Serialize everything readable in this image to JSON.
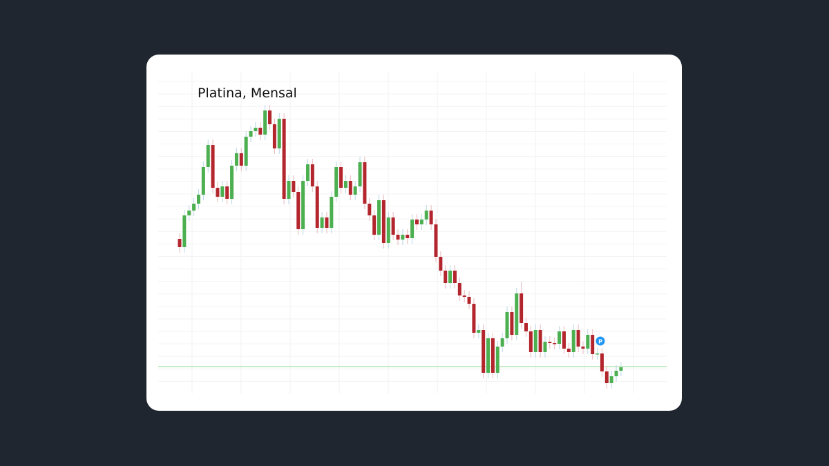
{
  "chart_data": {
    "type": "candlestick",
    "title": "Platina, Mensal",
    "badge": "P",
    "up_color": "#4caf50",
    "down_color": "#b3262d",
    "reference_line": 39,
    "ylim": [
      0,
      460
    ],
    "open": [
      224,
      212,
      258,
      265,
      275,
      288,
      328,
      360,
      298,
      285,
      300,
      282,
      330,
      348,
      330,
      372,
      380,
      385,
      375,
      410,
      390,
      355,
      398,
      282,
      308,
      292,
      238,
      308,
      332,
      300,
      240,
      255,
      240,
      285,
      328,
      298,
      308,
      288,
      300,
      335,
      275,
      258,
      230,
      280,
      218,
      255,
      230,
      223,
      230,
      225,
      252,
      245,
      252,
      265,
      245,
      198,
      178,
      160,
      178,
      160,
      142,
      140,
      130,
      88,
      92,
      30,
      80,
      30,
      68,
      80,
      118,
      85,
      145,
      102,
      90,
      60,
      92,
      60,
      75,
      73,
      72,
      90,
      65,
      60,
      92,
      68,
      65,
      85,
      57,
      58,
      32,
      15,
      25,
      33
    ],
    "high": [
      232,
      266,
      273,
      283,
      296,
      336,
      368,
      368,
      306,
      308,
      308,
      338,
      356,
      356,
      380,
      388,
      393,
      393,
      418,
      418,
      398,
      406,
      406,
      316,
      316,
      300,
      316,
      340,
      340,
      308,
      263,
      263,
      293,
      336,
      336,
      316,
      316,
      308,
      343,
      343,
      283,
      266,
      288,
      288,
      263,
      263,
      238,
      238,
      238,
      260,
      260,
      260,
      273,
      273,
      253,
      206,
      186,
      186,
      186,
      168,
      150,
      148,
      138,
      100,
      100,
      88,
      88,
      76,
      88,
      126,
      126,
      153,
      162,
      110,
      98,
      100,
      100,
      83,
      83,
      81,
      98,
      98,
      73,
      100,
      100,
      76,
      93,
      93,
      66,
      66,
      40,
      33,
      41,
      46
    ],
    "low": [
      204,
      204,
      250,
      257,
      267,
      280,
      320,
      290,
      277,
      277,
      274,
      274,
      322,
      322,
      322,
      364,
      372,
      367,
      367,
      382,
      347,
      347,
      274,
      274,
      284,
      230,
      230,
      300,
      292,
      232,
      232,
      232,
      232,
      277,
      290,
      290,
      280,
      280,
      292,
      267,
      250,
      222,
      222,
      210,
      210,
      222,
      215,
      215,
      217,
      217,
      237,
      237,
      244,
      237,
      190,
      170,
      152,
      152,
      152,
      134,
      132,
      122,
      80,
      80,
      22,
      22,
      22,
      22,
      60,
      72,
      77,
      77,
      94,
      82,
      52,
      52,
      52,
      52,
      65,
      64,
      64,
      57,
      52,
      52,
      60,
      57,
      57,
      49,
      49,
      24,
      7,
      7,
      17,
      25
    ],
    "close": [
      212,
      258,
      265,
      275,
      288,
      328,
      360,
      298,
      285,
      300,
      282,
      330,
      348,
      330,
      372,
      380,
      385,
      375,
      410,
      390,
      355,
      398,
      282,
      308,
      292,
      238,
      308,
      332,
      300,
      240,
      255,
      240,
      285,
      328,
      298,
      308,
      288,
      300,
      335,
      275,
      258,
      230,
      280,
      218,
      255,
      230,
      223,
      230,
      225,
      252,
      245,
      252,
      265,
      245,
      198,
      178,
      160,
      178,
      160,
      142,
      140,
      130,
      88,
      92,
      30,
      80,
      30,
      68,
      80,
      118,
      85,
      145,
      102,
      90,
      60,
      92,
      60,
      75,
      73,
      72,
      90,
      65,
      60,
      92,
      68,
      65,
      85,
      57,
      58,
      32,
      15,
      25,
      33,
      38
    ]
  }
}
